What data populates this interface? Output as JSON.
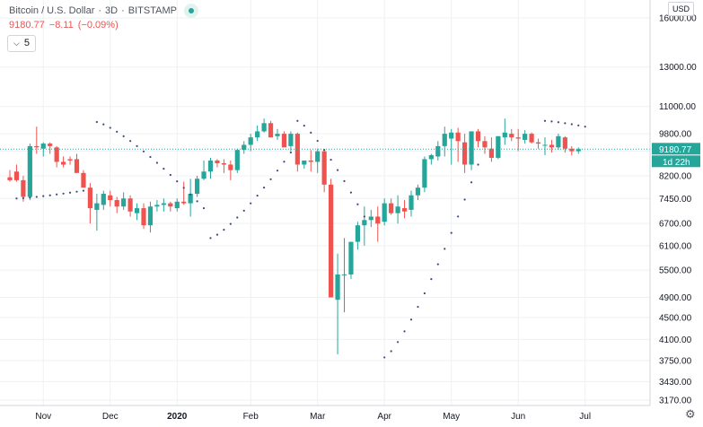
{
  "legend": {
    "symbol": "Bitcoin / U.S. Dollar",
    "interval": "3D",
    "exchange": "BITSTAMP",
    "price": "9180.77",
    "change": "−8.11",
    "change_pct": "(−0.09%)"
  },
  "indicator": {
    "label": "5"
  },
  "currency": "USD",
  "last_price_tag": "9180.77",
  "countdown_tag": "1d 22h",
  "colors": {
    "up": "#26a69a",
    "down": "#ef5350",
    "psar": "#3d4a7a",
    "grid": "#eef0f3"
  },
  "chart_data": {
    "type": "candlestick",
    "y_scale": "log",
    "ylim": [
      3100,
      16500
    ],
    "y_ticks": [
      "3170.00",
      "3430.00",
      "3750.00",
      "4100.00",
      "4500.00",
      "4900.00",
      "5500.00",
      "6100.00",
      "6700.00",
      "7450.00",
      "8200.00",
      "9100.00",
      "9800.00",
      "11000.00",
      "13000.00",
      "16000.00"
    ],
    "x_ticks": [
      {
        "label": "Nov",
        "i": 5
      },
      {
        "label": "Dec",
        "i": 15
      },
      {
        "label": "2020",
        "i": 25
      },
      {
        "label": "Feb",
        "i": 36
      },
      {
        "label": "Mar",
        "i": 46
      },
      {
        "label": "Apr",
        "i": 56
      },
      {
        "label": "May",
        "i": 66
      },
      {
        "label": "Jun",
        "i": 76
      },
      {
        "label": "Jul",
        "i": 86
      }
    ],
    "candles": [
      [
        8150,
        8400,
        8000,
        8050
      ],
      [
        8350,
        8600,
        8000,
        8050
      ],
      [
        8050,
        8200,
        7350,
        7500
      ],
      [
        7500,
        9400,
        7400,
        9300
      ],
      [
        9300,
        10100,
        9000,
        9250
      ],
      [
        9200,
        9450,
        8900,
        9400
      ],
      [
        9400,
        9450,
        9000,
        9300
      ],
      [
        9250,
        9300,
        8500,
        8700
      ],
      [
        8700,
        8900,
        8500,
        8600
      ],
      [
        8800,
        8900,
        8600,
        8750
      ],
      [
        8800,
        9000,
        8350,
        8300
      ],
      [
        8300,
        8400,
        7800,
        7800
      ],
      [
        7800,
        7950,
        6700,
        7150
      ],
      [
        7100,
        7600,
        6500,
        7300
      ],
      [
        7250,
        7700,
        7100,
        7600
      ],
      [
        7550,
        7700,
        7200,
        7400
      ],
      [
        7400,
        7500,
        7000,
        7200
      ],
      [
        7200,
        7650,
        7100,
        7450
      ],
      [
        7450,
        7550,
        6900,
        7050
      ],
      [
        7000,
        7300,
        6800,
        7150
      ],
      [
        7150,
        7300,
        6550,
        6650
      ],
      [
        6650,
        7350,
        6450,
        7200
      ],
      [
        7200,
        7400,
        7050,
        7250
      ],
      [
        7250,
        7450,
        7050,
        7300
      ],
      [
        7300,
        7350,
        7050,
        7200
      ],
      [
        7150,
        7450,
        7050,
        7350
      ],
      [
        7350,
        8000,
        7250,
        7300
      ],
      [
        7300,
        8100,
        6900,
        7600
      ],
      [
        7600,
        8200,
        7500,
        8100
      ],
      [
        8100,
        8750,
        8050,
        8350
      ],
      [
        8350,
        8850,
        8100,
        8750
      ],
      [
        8750,
        8800,
        8500,
        8650
      ],
      [
        8650,
        8800,
        8300,
        8600
      ],
      [
        8600,
        8750,
        8050,
        8400
      ],
      [
        8400,
        9200,
        8300,
        9150
      ],
      [
        9150,
        9500,
        9000,
        9350
      ],
      [
        9350,
        9800,
        9100,
        9650
      ],
      [
        9650,
        10150,
        9500,
        9900
      ],
      [
        9900,
        10450,
        9850,
        10250
      ],
      [
        10250,
        10350,
        9700,
        9650
      ],
      [
        9700,
        10000,
        9550,
        9800
      ],
      [
        9800,
        9900,
        9300,
        9250
      ],
      [
        9300,
        9900,
        9100,
        9800
      ],
      [
        9800,
        9850,
        8350,
        8600
      ],
      [
        8600,
        8750,
        8450,
        8750
      ],
      [
        8750,
        9150,
        8350,
        8700
      ],
      [
        8700,
        9200,
        8300,
        9100
      ],
      [
        9100,
        9150,
        7650,
        7900
      ],
      [
        7900,
        8100,
        4900,
        4900
      ],
      [
        4850,
        5900,
        3850,
        5400
      ],
      [
        5400,
        6300,
        4600,
        5400
      ],
      [
        5400,
        6200,
        5300,
        6200
      ],
      [
        6200,
        6750,
        6000,
        6650
      ],
      [
        6650,
        7200,
        6100,
        6800
      ],
      [
        6800,
        7100,
        6600,
        6900
      ],
      [
        6900,
        7200,
        6200,
        6700
      ],
      [
        6750,
        7450,
        6650,
        7300
      ],
      [
        7300,
        7450,
        6950,
        7000
      ],
      [
        7000,
        7550,
        6700,
        7200
      ],
      [
        7150,
        7400,
        6850,
        7050
      ],
      [
        7100,
        7700,
        6900,
        7550
      ],
      [
        7550,
        7900,
        7400,
        7800
      ],
      [
        7800,
        8900,
        7650,
        8800
      ],
      [
        8800,
        9000,
        8600,
        8950
      ],
      [
        8900,
        9500,
        8750,
        9300
      ],
      [
        9300,
        10100,
        8900,
        9800
      ],
      [
        9600,
        10000,
        8600,
        9850
      ],
      [
        9850,
        10050,
        8700,
        9500
      ],
      [
        9450,
        9800,
        8300,
        8600
      ],
      [
        8600,
        9900,
        8400,
        9900
      ],
      [
        9900,
        10000,
        9250,
        9500
      ],
      [
        9500,
        9700,
        9000,
        9250
      ],
      [
        9200,
        9650,
        8700,
        8850
      ],
      [
        8850,
        9700,
        8800,
        9700
      ],
      [
        9650,
        10450,
        9350,
        9850
      ],
      [
        9800,
        10000,
        9500,
        9650
      ],
      [
        9650,
        10000,
        9100,
        9600
      ],
      [
        9550,
        9950,
        9400,
        9800
      ],
      [
        9800,
        9850,
        9400,
        9450
      ],
      [
        9450,
        9600,
        9200,
        9400
      ],
      [
        9350,
        9650,
        8950,
        9350
      ],
      [
        9350,
        9550,
        9050,
        9250
      ],
      [
        9250,
        9800,
        9150,
        9700
      ],
      [
        9650,
        9700,
        9050,
        9200
      ],
      [
        9200,
        9300,
        8950,
        9100
      ],
      [
        9100,
        9250,
        9000,
        9180
      ]
    ],
    "psar_segments": [
      {
        "from": 1,
        "to": 11,
        "start": 7450,
        "end": 7700,
        "side": "below"
      },
      {
        "from": 13,
        "to": 29,
        "start": 10300,
        "end": 7150,
        "side": "above"
      },
      {
        "from": 30,
        "to": 42,
        "start": 6300,
        "end": 9050,
        "side": "below"
      },
      {
        "from": 43,
        "to": 53,
        "start": 10350,
        "end": 6900,
        "side": "above"
      },
      {
        "from": 56,
        "to": 70,
        "start": 3800,
        "end": 8600,
        "side": "below"
      },
      {
        "from": 80,
        "to": 86,
        "start": 10350,
        "end": 10100,
        "side": "above"
      }
    ]
  }
}
